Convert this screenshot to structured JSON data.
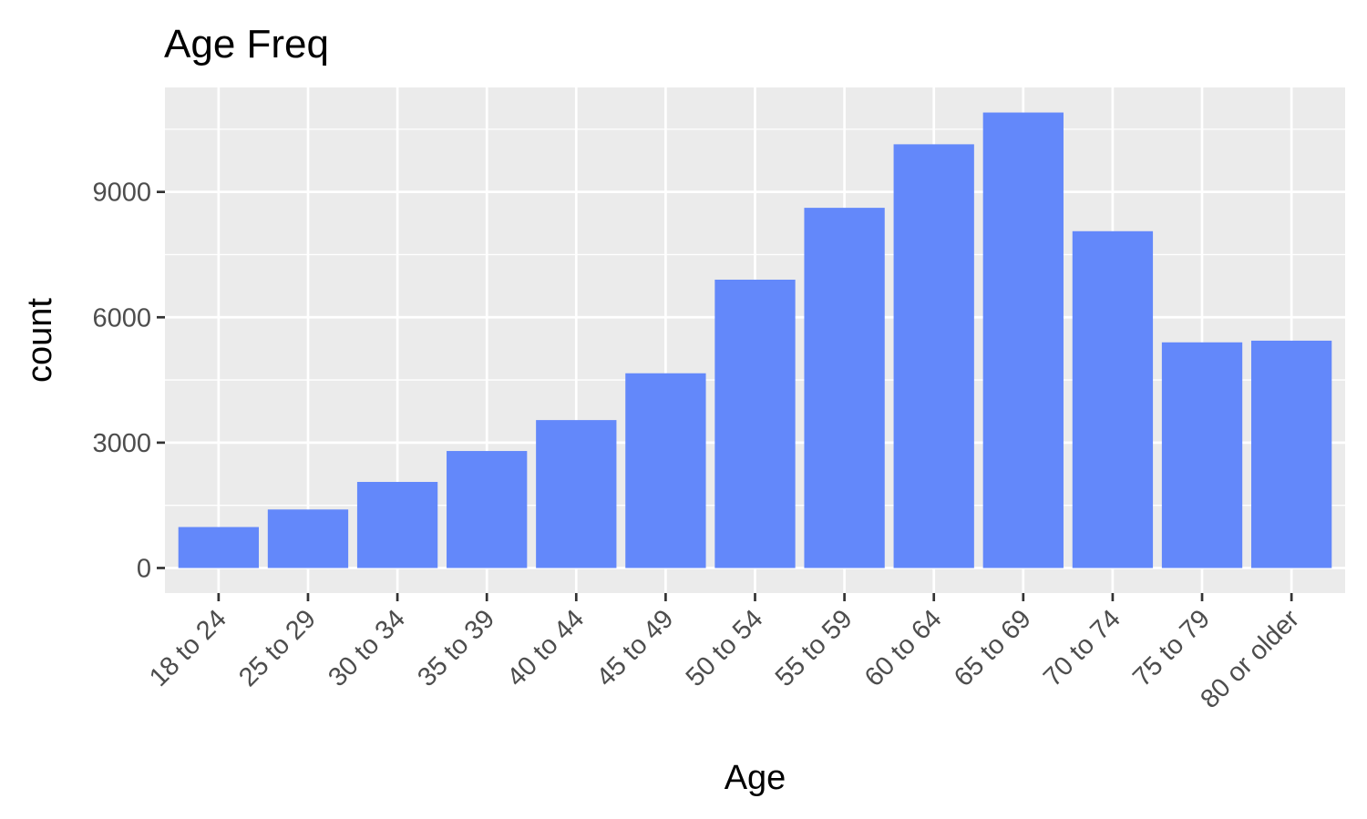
{
  "chart_data": {
    "type": "bar",
    "title": "Age Freq",
    "xlabel": "Age",
    "ylabel": "count",
    "categories": [
      "18 to 24",
      "25 to 29",
      "30 to 34",
      "35 to 39",
      "40 to 44",
      "45 to 49",
      "50 to 54",
      "55 to 59",
      "60 to 64",
      "65 to 69",
      "70 to 74",
      "75 to 79",
      "80 or older"
    ],
    "values": [
      980,
      1400,
      2060,
      2800,
      3540,
      4660,
      6900,
      8620,
      10140,
      10900,
      8060,
      5400,
      5440
    ],
    "yticks": [
      0,
      3000,
      6000,
      9000
    ],
    "ytick_labels": [
      "0",
      "3000",
      "6000",
      "9000"
    ],
    "ylim": [
      -600,
      11500
    ],
    "bar_color": "#6388fa",
    "panel_background": "#ebebeb",
    "grid": true,
    "legend": "none"
  }
}
